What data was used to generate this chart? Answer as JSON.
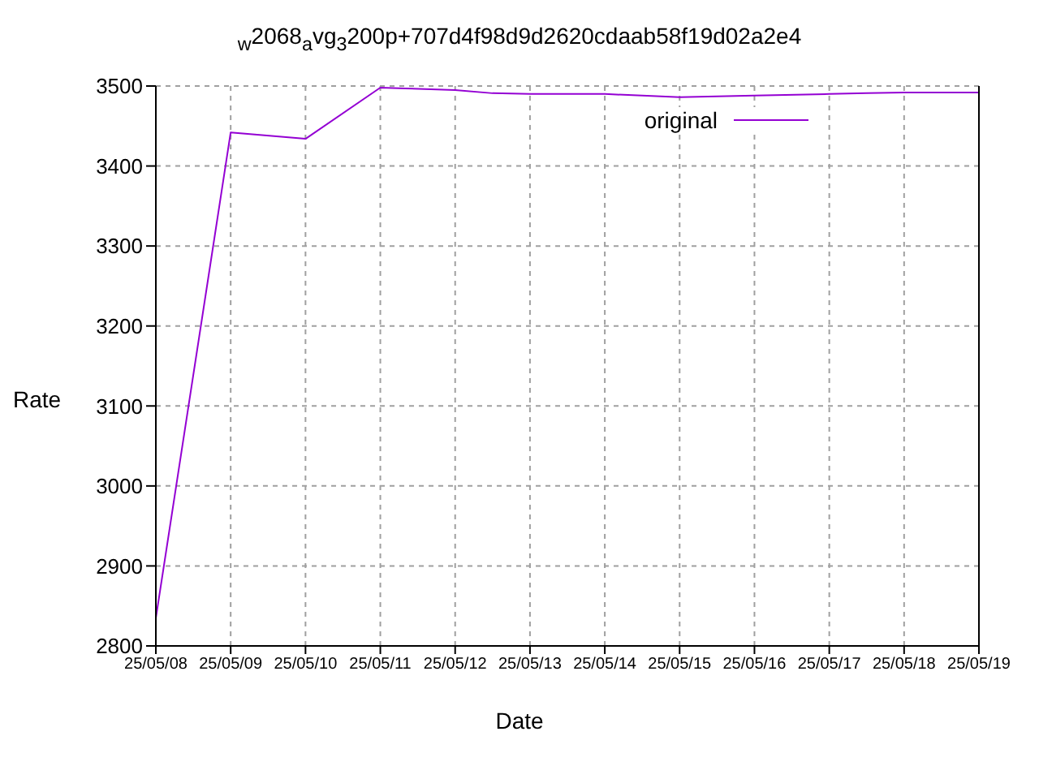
{
  "chart_data": {
    "type": "line",
    "title": "$_{w}$2068$_{a}$vg$_{3}$200p+707d4f98d9d2620cdaab58f19d02a2e4",
    "xlabel": "Date",
    "ylabel": "Rate",
    "series": [
      {
        "name": "original",
        "color": "#9400d3",
        "x": [
          "--05-08",
          "--05-09",
          "--05-10",
          "--05-11",
          "--05-11T08:00",
          "--05-12",
          "--05-12T12:00",
          "--05-13",
          "--05-14",
          "--05-14T12:00",
          "--05-15",
          "--05-15T12:00",
          "--05-16",
          "--05-17",
          "--05-17T12:00",
          "--05-18",
          "--05-19"
        ],
        "values": [
          2835,
          3442,
          3434,
          3498,
          3497,
          3495,
          3491,
          3490,
          3490,
          3488,
          3486,
          3487,
          3488,
          3490,
          3491,
          3492,
          3492
        ]
      }
    ],
    "xlim": [
      "--05-08",
      "--05-19"
    ],
    "xticks": [
      {
        "value": "--05-08",
        "label": "25/05/08"
      },
      {
        "value": "--05-09",
        "label": "25/05/09"
      },
      {
        "value": "--05-10",
        "label": "25/05/10"
      },
      {
        "value": "--05-11",
        "label": "25/05/11"
      },
      {
        "value": "--05-12",
        "label": "25/05/12"
      },
      {
        "value": "--05-13",
        "label": "25/05/13"
      },
      {
        "value": "--05-14",
        "label": "25/05/14"
      },
      {
        "value": "--05-15",
        "label": "25/05/15"
      },
      {
        "value": "--05-16",
        "label": "25/05/16"
      },
      {
        "value": "--05-17",
        "label": "25/05/17"
      },
      {
        "value": "--05-18",
        "label": "25/05/18"
      },
      {
        "value": "--05-19",
        "label": "25/05/19"
      }
    ],
    "ylim": [
      2800,
      3500
    ],
    "yticks": [
      2800,
      2900,
      3000,
      3100,
      3200,
      3300,
      3400,
      3500
    ],
    "grid": true,
    "legend": "top right",
    "line_style": "solid"
  }
}
